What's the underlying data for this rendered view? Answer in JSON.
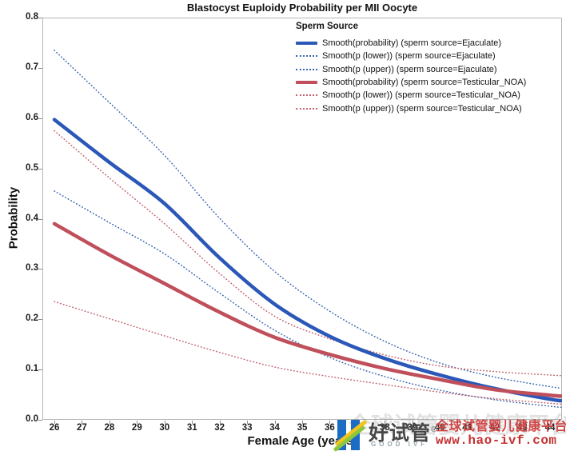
{
  "chart_data": {
    "type": "line",
    "title": "Blastocyst Euploidy Probability per MII Oocyte",
    "xlabel": "Female Age (years)",
    "ylabel": "Probability",
    "xlim": [
      25.6,
      44.45
    ],
    "ylim": [
      0,
      0.8
    ],
    "grid": false,
    "legend_position": "top-right-inside",
    "x_ticks": [
      26,
      27,
      28,
      29,
      30,
      31,
      32,
      33,
      34,
      35,
      36,
      37,
      38,
      39,
      40,
      41,
      42,
      43,
      44
    ],
    "y_ticks": [
      "0.0",
      "0.1",
      "0.2",
      "0.3",
      "0.4",
      "0.5",
      "0.6",
      "0.7",
      "0.8"
    ],
    "frame_color": "#b5b5b5",
    "x": [
      26,
      28,
      30,
      32,
      34,
      36,
      38,
      40,
      42,
      44,
      44.4
    ],
    "series": [
      {
        "name": "Smooth(probability) (sperm source=Ejaculate)",
        "style": "solid",
        "color": "#2b57b8",
        "width": 4.5,
        "values": [
          0.597,
          0.512,
          0.43,
          0.322,
          0.23,
          0.166,
          0.122,
          0.089,
          0.062,
          0.041,
          0.038
        ]
      },
      {
        "name": "Smooth(p (lower)) (sperm source=Ejaculate)",
        "style": "dotted",
        "color": "#3a66b0",
        "width": 1.5,
        "values": [
          0.455,
          0.392,
          0.33,
          0.252,
          0.178,
          0.124,
          0.086,
          0.059,
          0.04,
          0.027,
          0.025
        ]
      },
      {
        "name": "Smooth(p (upper)) (sperm source=Ejaculate)",
        "style": "dotted",
        "color": "#3a66b0",
        "width": 1.5,
        "values": [
          0.735,
          0.631,
          0.526,
          0.401,
          0.295,
          0.216,
          0.156,
          0.113,
          0.085,
          0.066,
          0.063
        ]
      },
      {
        "name": "Smooth(probability) (sperm source=Testicular_NOA)",
        "style": "solid",
        "color": "#c04f5c",
        "width": 4.5,
        "values": [
          0.39,
          0.328,
          0.271,
          0.214,
          0.164,
          0.13,
          0.102,
          0.08,
          0.06,
          0.049,
          0.047
        ]
      },
      {
        "name": "Smooth(p (lower)) (sperm source=Testicular_NOA)",
        "style": "dotted",
        "color": "#c4636e",
        "width": 1.5,
        "values": [
          0.235,
          0.201,
          0.167,
          0.134,
          0.105,
          0.086,
          0.07,
          0.055,
          0.042,
          0.033,
          0.031
        ]
      },
      {
        "name": "Smooth(p (upper)) (sperm source=Testicular_NOA)",
        "style": "dotted",
        "color": "#c4636e",
        "width": 1.5,
        "values": [
          0.575,
          0.481,
          0.39,
          0.291,
          0.206,
          0.161,
          0.129,
          0.107,
          0.096,
          0.089,
          0.088
        ]
      }
    ]
  },
  "legend": {
    "title": "Sperm Source"
  },
  "watermark": {
    "logo_text": "好试管",
    "logo_reg_mark": "®",
    "logo_subtext": "GOOD IVF",
    "tagline_cn": "全球试管婴儿健康平台",
    "url": "www.hao-ivf.com",
    "ghost_text": "全球试管婴儿健康平台",
    "colors": {
      "logo_blue": "#1b6cc4",
      "swoosh_yellow": "#f2c41d",
      "swoosh_green": "#8dc63f",
      "tagline_red": "#d04545",
      "url_red": "#c53030"
    }
  }
}
